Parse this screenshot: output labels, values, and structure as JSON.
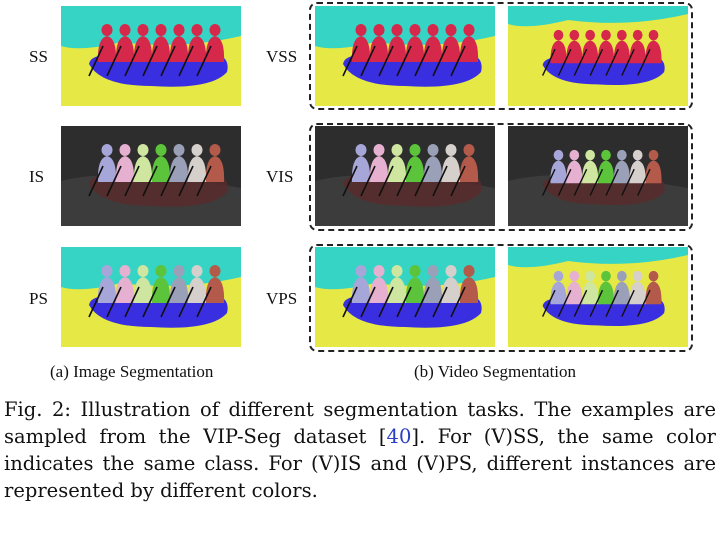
{
  "labels": {
    "image": [
      "SS",
      "IS",
      "PS"
    ],
    "video": [
      "VSS",
      "VIS",
      "VPS"
    ]
  },
  "subcaptions": {
    "image": "(a)  Image Segmentation",
    "video": "(b) Video Segmentation"
  },
  "caption": {
    "prefix": "Fig. 2: Illustration of different segmentation tasks. The examples are sampled from the VIP-Seg dataset [",
    "cite": "40",
    "suffix": "]. For (V)SS, the same color indicates the same class. For (V)IS and (V)PS, different instances are represented by different colors."
  },
  "colors": {
    "water_ss": "#e6e845",
    "sky_ss": "#35d4c4",
    "boat": "#3a2fe0",
    "person_ss": "#d6284a",
    "dark_bg": "#2d2d2d",
    "instance_palette": [
      "#a7a6d8",
      "#e6b0d0",
      "#cfe6a0",
      "#5cc43a",
      "#9aa0b8",
      "#d6d0cc",
      "#b45a4a",
      "#8a8ad0"
    ]
  }
}
